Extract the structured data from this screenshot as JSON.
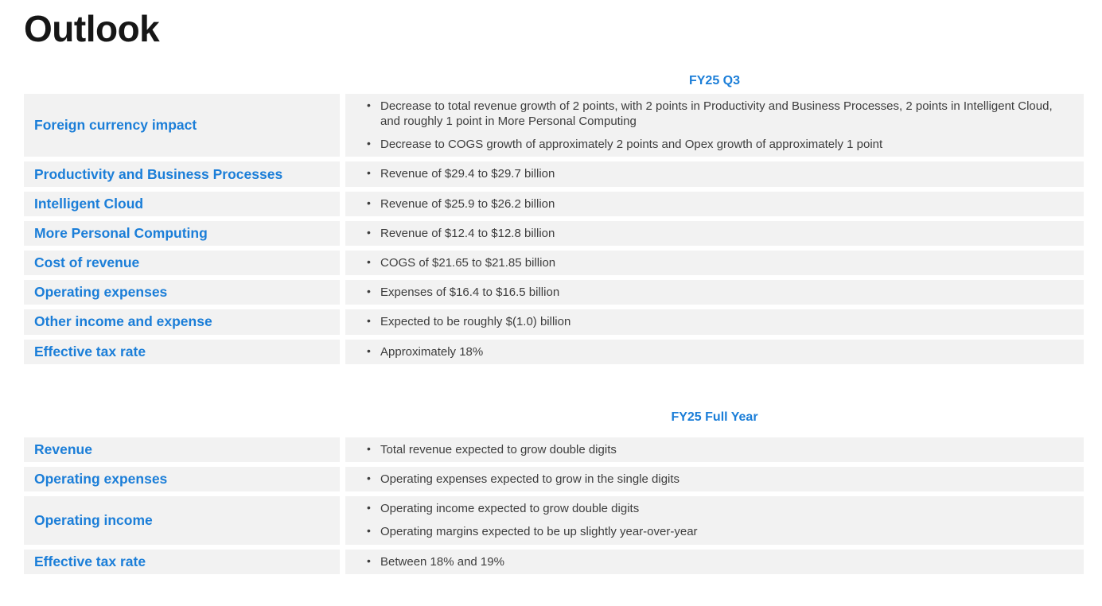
{
  "page_title": "Outlook",
  "colors": {
    "accent_blue": "#1b7ed8",
    "row_background": "#f2f2f2",
    "body_text": "#3d3d3d",
    "title_text": "#161616"
  },
  "tables": [
    {
      "header": "FY25 Q3",
      "rows": [
        {
          "label": "Foreign currency impact",
          "bullets": [
            "Decrease to total revenue growth of 2 points, with 2 points in Productivity and Business Processes, 2 points in Intelligent Cloud, and roughly 1 point in More Personal Computing",
            "Decrease to COGS growth of approximately 2 points and Opex growth of approximately 1 point"
          ]
        },
        {
          "label": "Productivity and Business Processes",
          "bullets": [
            "Revenue of $29.4 to $29.7 billion"
          ]
        },
        {
          "label": "Intelligent Cloud",
          "bullets": [
            "Revenue of $25.9 to $26.2 billion"
          ]
        },
        {
          "label": "More Personal Computing",
          "bullets": [
            "Revenue of $12.4 to $12.8 billion"
          ]
        },
        {
          "label": "Cost of revenue",
          "bullets": [
            "COGS of $21.65 to $21.85 billion"
          ]
        },
        {
          "label": "Operating expenses",
          "bullets": [
            "Expenses of $16.4 to $16.5 billion"
          ]
        },
        {
          "label": "Other income and expense",
          "bullets": [
            "Expected to be roughly $(1.0) billion"
          ]
        },
        {
          "label": "Effective tax rate",
          "bullets": [
            "Approximately 18%"
          ]
        }
      ]
    },
    {
      "header": "FY25 Full Year",
      "rows": [
        {
          "label": "Revenue",
          "bullets": [
            "Total revenue expected to grow double digits"
          ]
        },
        {
          "label": "Operating expenses",
          "bullets": [
            "Operating expenses expected to grow in the single digits"
          ]
        },
        {
          "label": "Operating income",
          "bullets": [
            "Operating income expected to grow double digits",
            "Operating margins expected to be up slightly year-over-year"
          ]
        },
        {
          "label": "Effective tax rate",
          "bullets": [
            "Between 18% and 19%"
          ]
        }
      ]
    }
  ]
}
